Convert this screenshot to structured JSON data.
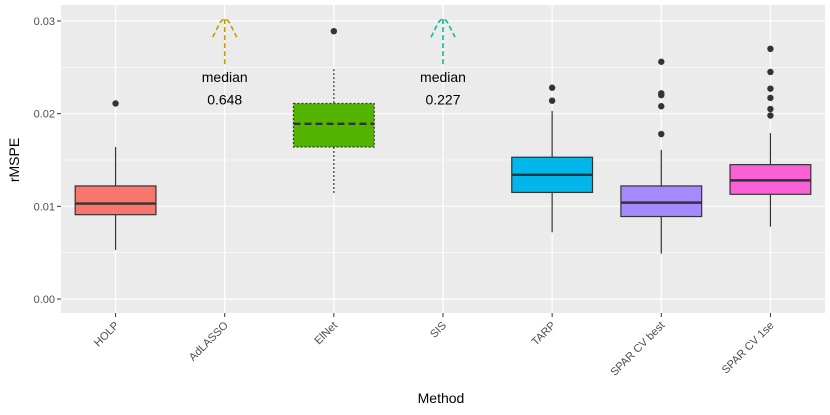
{
  "chart_data": {
    "type": "boxplot",
    "title": "",
    "xlabel": "Method",
    "ylabel": "rMSPE",
    "ylim": [
      -0.0015,
      0.0315
    ],
    "yticks": [
      0.0,
      0.01,
      0.02,
      0.03
    ],
    "ytick_labels": [
      "0.00",
      "0.01",
      "0.02",
      "0.03"
    ],
    "categories": [
      "HOLP",
      "AdLASSO",
      "ElNet",
      "SIS",
      "TARP",
      "SPAR CV best",
      "SPAR CV 1se"
    ],
    "boxes": [
      {
        "name": "HOLP",
        "color": "#F8766D",
        "whisker_low": 0.0053,
        "q1": 0.0091,
        "median": 0.0103,
        "q3": 0.0122,
        "whisker_high": 0.0164,
        "outliers": [
          0.0211
        ],
        "style": "solid"
      },
      {
        "name": "AdLASSO",
        "color": "#C49A00",
        "off_scale": true,
        "median_label": "median",
        "median_value": "0.648"
      },
      {
        "name": "ElNet",
        "color": "#53B400",
        "whisker_low": 0.0114,
        "q1": 0.0164,
        "median": 0.0189,
        "q3": 0.0211,
        "whisker_high": 0.0248,
        "outliers": [
          0.0289
        ],
        "style": "dashed"
      },
      {
        "name": "SIS",
        "color": "#00C094",
        "off_scale": true,
        "median_label": "median",
        "median_value": "0.227"
      },
      {
        "name": "TARP",
        "color": "#00B6EB",
        "whisker_low": 0.0072,
        "q1": 0.0115,
        "median": 0.0134,
        "q3": 0.0153,
        "whisker_high": 0.0203,
        "outliers": [
          0.0214,
          0.0228
        ],
        "style": "solid"
      },
      {
        "name": "SPAR CV best",
        "color": "#A58AFF",
        "whisker_low": 0.0049,
        "q1": 0.0089,
        "median": 0.0104,
        "q3": 0.0122,
        "whisker_high": 0.0161,
        "outliers": [
          0.0178,
          0.0208,
          0.022,
          0.0222,
          0.0256
        ],
        "style": "solid"
      },
      {
        "name": "SPAR CV 1se",
        "color": "#FB61D7",
        "whisker_low": 0.0078,
        "q1": 0.0113,
        "median": 0.0128,
        "q3": 0.0145,
        "whisker_high": 0.0179,
        "outliers": [
          0.0198,
          0.0205,
          0.0217,
          0.0227,
          0.0245,
          0.027
        ],
        "style": "solid"
      }
    ],
    "panel_background": "#EBEBEB",
    "grid_color": "#FFFFFF"
  }
}
